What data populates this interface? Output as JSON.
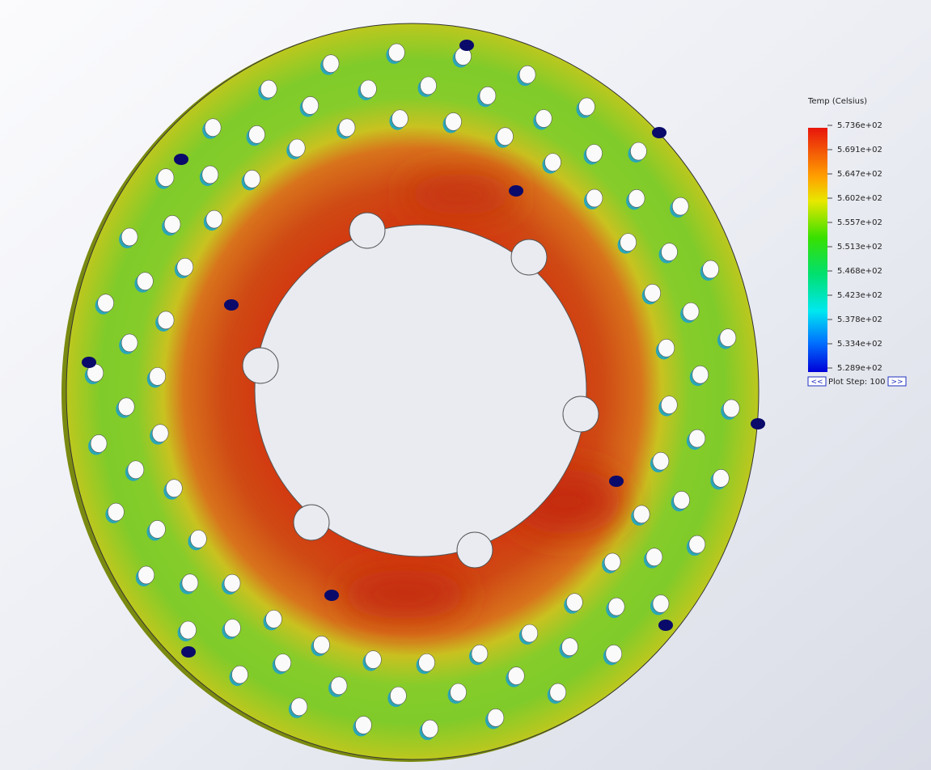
{
  "legend": {
    "title": "Temp (Celsius)",
    "labels": [
      "5.736e+02",
      "5.691e+02",
      "5.647e+02",
      "5.602e+02",
      "5.557e+02",
      "5.513e+02",
      "5.468e+02",
      "5.423e+02",
      "5.378e+02",
      "5.334e+02",
      "5.289e+02"
    ]
  },
  "plot_step": {
    "previous": "<<",
    "label": "Plot Step: 100",
    "next": ">>"
  }
}
